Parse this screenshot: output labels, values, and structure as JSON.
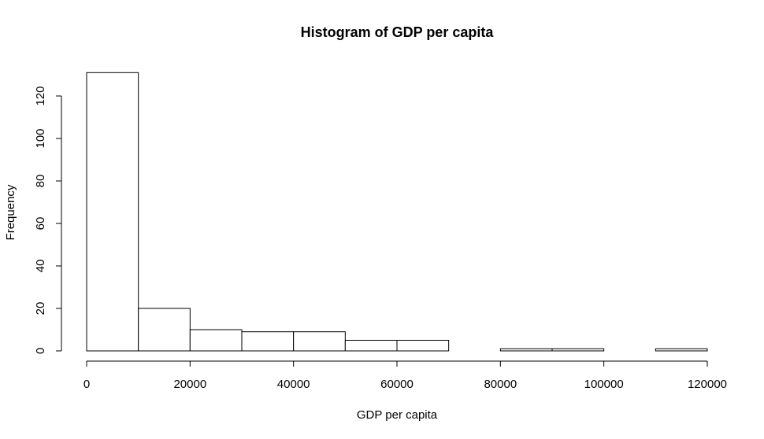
{
  "chart_data": {
    "type": "histogram",
    "title": "Histogram of GDP per capita",
    "x_label": "GDP per capita",
    "y_label": "Frequency",
    "bins": [
      0,
      10000,
      20000,
      30000,
      40000,
      50000,
      60000,
      70000,
      80000,
      90000,
      100000,
      110000,
      120000
    ],
    "values": [
      131,
      20,
      10,
      9,
      9,
      5,
      5,
      0,
      1,
      1,
      0,
      1
    ],
    "color": "#ffffff",
    "xlim": [
      0,
      120000
    ],
    "xticks": [
      0,
      20000,
      40000,
      60000,
      80000,
      100000,
      120000
    ],
    "ylim": [
      0,
      131
    ],
    "yticks": [
      0,
      20,
      40,
      60,
      80,
      100,
      120
    ]
  }
}
